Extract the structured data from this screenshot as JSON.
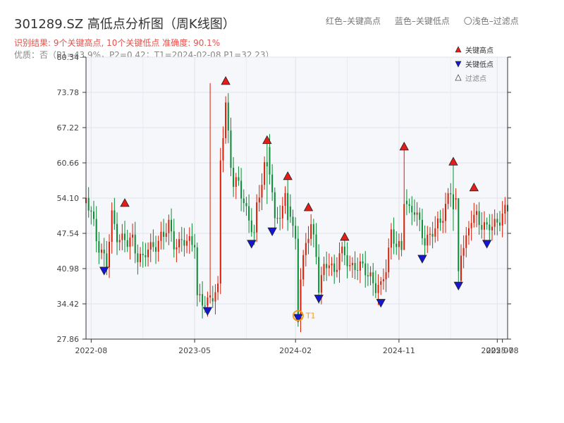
{
  "header": {
    "title": "301289.SZ 高低点分析图（周K线图）",
    "result_line": "识别结果: 9个关键高点, 10个关键低点   准确度: 90.1%",
    "quality_line": "优质：否（P1=43.9%，P2=0.42；T1=2024-02-08 P1=32.23）"
  },
  "top_legend": {
    "red": "红色–关键高点",
    "blue": "蓝色–关键低点",
    "hollow": "〇浅色–过滤点"
  },
  "colors": {
    "up": "#d81e06",
    "down": "#0a8a35",
    "high_marker": "#e81b1b",
    "low_marker": "#1515d6",
    "t1": "#f29b1f",
    "plot_bg": "#f5f7fa",
    "grid": "#dfe3ea",
    "axis": "#333333"
  },
  "chart_data": {
    "type": "candlestick",
    "title": "301289.SZ 高低点分析图（周K线图）",
    "y_ticks": [
      "27.86",
      "34.42",
      "40.98",
      "47.54",
      "54.10",
      "60.66",
      "67.22",
      "73.78",
      "80.34"
    ],
    "ylim": [
      27.86,
      80.34
    ],
    "x_ticks": [
      "2022-08",
      "2023-05",
      "2024-02",
      "2024-11",
      "2025-07",
      "2025-08"
    ],
    "x_tick_weeks": [
      0,
      40,
      79,
      119,
      157,
      159
    ],
    "x_domain_weeks": [
      -2,
      161
    ],
    "grid": true,
    "legend": {
      "position": "top-right",
      "entries": [
        {
          "label": "关键高点",
          "marker": "high"
        },
        {
          "label": "关键低点",
          "marker": "low"
        },
        {
          "label": "过滤点",
          "marker": "filtered"
        }
      ]
    },
    "anchors": [
      [
        -2,
        54.0
      ],
      [
        0,
        51.0
      ],
      [
        2,
        46.5
      ],
      [
        4,
        44.5
      ],
      [
        6,
        41.6
      ],
      [
        8,
        50.5
      ],
      [
        10,
        47.5
      ],
      [
        12,
        46.5
      ],
      [
        14,
        45.5
      ],
      [
        16,
        46.5
      ],
      [
        18,
        43.5
      ],
      [
        20,
        42.5
      ],
      [
        22,
        44.5
      ],
      [
        24,
        45.5
      ],
      [
        26,
        46.0
      ],
      [
        28,
        46.8
      ],
      [
        30,
        49.5
      ],
      [
        32,
        46.0
      ],
      [
        34,
        45.0
      ],
      [
        36,
        46.0
      ],
      [
        38,
        46.5
      ],
      [
        40,
        46.0
      ],
      [
        41,
        35.0
      ],
      [
        43,
        34.6
      ],
      [
        45,
        35.2
      ],
      [
        47,
        36.0
      ],
      [
        49,
        36.5
      ],
      [
        50,
        61.0
      ],
      [
        52,
        72.0
      ],
      [
        54,
        60.5
      ],
      [
        55,
        56.5
      ],
      [
        57,
        56.5
      ],
      [
        59,
        54.0
      ],
      [
        61,
        50.0
      ],
      [
        63,
        46.8
      ],
      [
        64,
        52.0
      ],
      [
        66,
        58.0
      ],
      [
        68,
        63.0
      ],
      [
        70,
        55.0
      ],
      [
        71,
        49.0
      ],
      [
        73,
        52.0
      ],
      [
        75,
        54.0
      ],
      [
        77,
        51.0
      ],
      [
        78,
        48.0
      ],
      [
        79,
        46.0
      ],
      [
        80,
        33.0
      ],
      [
        81,
        40.0
      ],
      [
        83,
        45.0
      ],
      [
        85,
        49.0
      ],
      [
        87,
        44.0
      ],
      [
        88,
        38.0
      ],
      [
        90,
        40.5
      ],
      [
        92,
        42.0
      ],
      [
        94,
        40.5
      ],
      [
        96,
        44.0
      ],
      [
        98,
        43.0
      ],
      [
        100,
        41.5
      ],
      [
        102,
        41.8
      ],
      [
        104,
        41.0
      ],
      [
        106,
        40.5
      ],
      [
        108,
        39.8
      ],
      [
        110,
        37.5
      ],
      [
        112,
        37.0
      ],
      [
        114,
        41.5
      ],
      [
        116,
        48.0
      ],
      [
        118,
        45.0
      ],
      [
        120,
        44.0
      ],
      [
        121,
        55.0
      ],
      [
        123,
        52.0
      ],
      [
        125,
        51.5
      ],
      [
        127,
        49.0
      ],
      [
        129,
        46.5
      ],
      [
        131,
        47.0
      ],
      [
        133,
        48.0
      ],
      [
        135,
        50.0
      ],
      [
        137,
        53.0
      ],
      [
        139,
        55.0
      ],
      [
        141,
        53.0
      ],
      [
        142,
        38.5
      ],
      [
        143,
        45.0
      ],
      [
        145,
        46.0
      ],
      [
        147,
        50.0
      ],
      [
        149,
        51.0
      ],
      [
        151,
        49.5
      ],
      [
        153,
        48.0
      ],
      [
        155,
        49.0
      ],
      [
        157,
        50.0
      ],
      [
        159,
        51.0
      ],
      [
        161,
        51.5
      ]
    ],
    "spikes": [
      {
        "week": 46,
        "close": 36.0,
        "high": 75.5,
        "low": 34.5
      },
      {
        "week": 68,
        "close": 60.0,
        "high": 64.5,
        "low": 53.0
      },
      {
        "week": 76,
        "close": 50.0,
        "high": 57.8,
        "low": 48.0
      },
      {
        "week": 121,
        "close": 53.0,
        "high": 63.3,
        "low": 46.0
      },
      {
        "week": 140,
        "close": 52.0,
        "high": 60.5,
        "low": 48.0
      },
      {
        "week": 142,
        "close": 40.5,
        "high": 46.0,
        "low": 38.2
      }
    ],
    "key_highs": [
      {
        "week": 13,
        "price": 52.8
      },
      {
        "week": 52,
        "price": 75.5
      },
      {
        "week": 68,
        "price": 64.5
      },
      {
        "week": 76,
        "price": 57.8
      },
      {
        "week": 84,
        "price": 52.0
      },
      {
        "week": 98,
        "price": 46.5
      },
      {
        "week": 121,
        "price": 63.3
      },
      {
        "week": 140,
        "price": 60.5
      },
      {
        "week": 148,
        "price": 55.7
      }
    ],
    "key_lows": [
      {
        "week": 5,
        "price": 41.0
      },
      {
        "week": 45,
        "price": 33.5
      },
      {
        "week": 62,
        "price": 46.0
      },
      {
        "week": 70,
        "price": 48.3
      },
      {
        "week": 80,
        "price": 32.2
      },
      {
        "week": 88,
        "price": 35.8
      },
      {
        "week": 112,
        "price": 35.0
      },
      {
        "week": 128,
        "price": 43.2
      },
      {
        "week": 142,
        "price": 38.2
      },
      {
        "week": 153,
        "price": 46.0
      }
    ],
    "t1": {
      "label": "T1",
      "week": 80,
      "price": 32.23
    }
  }
}
